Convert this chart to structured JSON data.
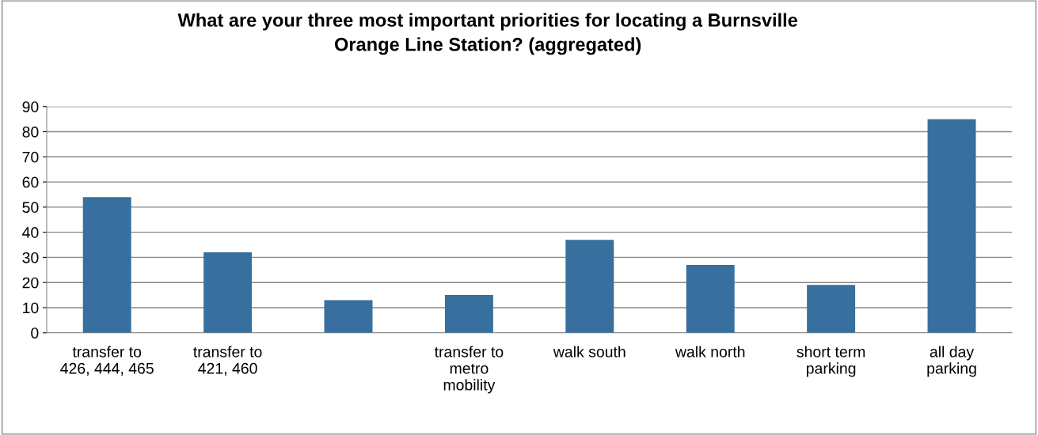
{
  "chart_data": {
    "type": "bar",
    "title": "What are your three most important priorities for locating a Burnsville\nOrange Line Station? (aggregated)",
    "categories": [
      "transfer to\n426, 444, 465",
      "transfer to\n421, 460",
      null,
      "transfer to\nmetro\nmobility",
      "walk south",
      "walk north",
      "short term\nparking",
      "all day\nparking"
    ],
    "values": [
      54,
      32,
      13,
      15,
      37,
      27,
      19,
      85
    ],
    "color": "#376f9e",
    "ylim": [
      0,
      90
    ],
    "yticks": [
      0,
      10,
      20,
      30,
      40,
      50,
      60,
      70,
      80,
      90
    ],
    "grid": "y",
    "legend": false
  }
}
